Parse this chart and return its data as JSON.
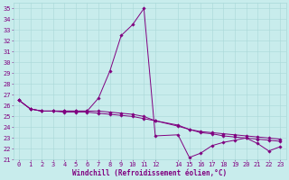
{
  "xlabel": "Windchill (Refroidissement éolien,°C)",
  "background_color": "#c8ecec",
  "grid_color": "#a8d8d8",
  "line_color": "#800080",
  "hours": [
    0,
    1,
    2,
    3,
    4,
    5,
    6,
    7,
    8,
    9,
    10,
    11,
    12,
    14,
    15,
    16,
    17,
    18,
    19,
    20,
    21,
    22,
    23
  ],
  "series1": [
    26.5,
    25.7,
    25.5,
    25.5,
    25.5,
    25.5,
    25.5,
    26.7,
    29.2,
    32.5,
    33.5,
    35.0,
    23.2,
    23.3,
    21.2,
    21.6,
    22.3,
    22.6,
    22.8,
    23.0,
    22.5,
    21.8,
    22.2
  ],
  "series2": [
    26.5,
    25.7,
    25.5,
    25.5,
    25.5,
    25.5,
    25.5,
    25.5,
    25.4,
    25.3,
    25.2,
    25.0,
    24.6,
    24.1,
    23.8,
    23.6,
    23.5,
    23.4,
    23.3,
    23.2,
    23.1,
    23.0,
    22.9
  ],
  "series3": [
    26.5,
    25.7,
    25.5,
    25.5,
    25.4,
    25.4,
    25.4,
    25.3,
    25.2,
    25.1,
    25.0,
    24.8,
    24.6,
    24.2,
    23.8,
    23.5,
    23.4,
    23.2,
    23.1,
    23.0,
    22.9,
    22.8,
    22.7
  ],
  "ylim": [
    21,
    35.5
  ],
  "yticks": [
    21,
    22,
    23,
    24,
    25,
    26,
    27,
    28,
    29,
    30,
    31,
    32,
    33,
    34,
    35
  ],
  "xticks": [
    0,
    1,
    2,
    3,
    4,
    5,
    6,
    7,
    8,
    9,
    10,
    11,
    12,
    14,
    15,
    16,
    17,
    18,
    19,
    20,
    21,
    22,
    23
  ],
  "figsize": [
    3.2,
    2.0
  ],
  "dpi": 100,
  "marker_size": 1.8,
  "line_width": 0.7,
  "tick_fontsize": 5,
  "xlabel_fontsize": 5.5
}
